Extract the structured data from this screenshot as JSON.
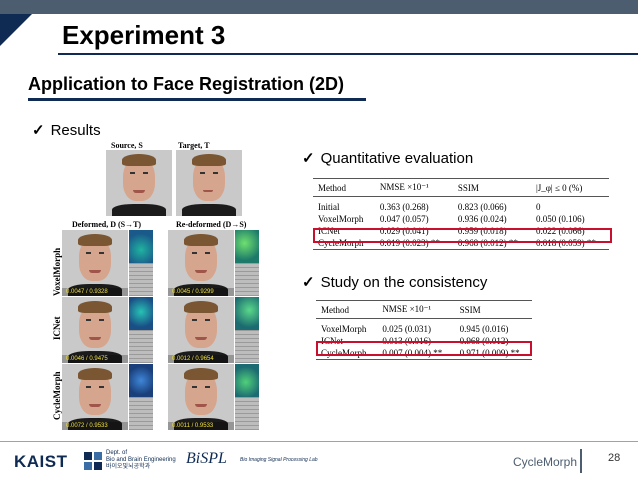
{
  "slide": {
    "title": "Experiment 3",
    "subtitle": "Application to Face Registration (2D)",
    "bullets": {
      "results": "Results",
      "quantitative": "Quantitative evaluation",
      "consistency": "Study on the consistency"
    },
    "check_glyph": "✓"
  },
  "figure": {
    "source_label": "Source, S",
    "target_label": "Target, T",
    "deformed_label": "Deformed, D (S→T)",
    "redeformed_label": "Re-deformed (D→S)",
    "rows": [
      {
        "label": "VoxelMorph",
        "left_score": "0.0047 / 0.9328",
        "right_score": "0.0045 / 0.9299"
      },
      {
        "label": "ICNet",
        "left_score": "0.0046 / 0.9475",
        "right_score": "0.0012 / 0.9654"
      },
      {
        "label": "CycleMorph",
        "left_score": "0.0072 / 0.9533",
        "right_score": "0.0011 / 0.9533"
      }
    ]
  },
  "table1": {
    "headers": [
      "Method",
      "NMSE ×10⁻¹",
      "SSIM",
      "|J_φ| ≤ 0 (%)"
    ],
    "rows": [
      [
        "Initial",
        "0.363 (0.268)",
        "0.823 (0.066)",
        "0"
      ],
      [
        "VoxelMorph",
        "0.047 (0.057)",
        "0.936 (0.024)",
        "0.050 (0.106)"
      ],
      [
        "ICNet",
        "0.029 (0.041)",
        "0.959 (0.018)",
        "0.022 (0.066)"
      ],
      [
        "CycleMorph",
        "0.019 (0.023) **",
        "0.968 (0.012) **",
        "0.018 (0.059) **"
      ]
    ]
  },
  "table2": {
    "headers": [
      "Method",
      "NMSE ×10⁻¹",
      "SSIM"
    ],
    "rows": [
      [
        "VoxelMorph",
        "0.025 (0.031)",
        "0.945 (0.016)"
      ],
      [
        "ICNet",
        "0.013 (0.016)",
        "0.968 (0.012)"
      ],
      [
        "CycleMorph",
        "0.007 (0.004) **",
        "0.971 (0.009) **"
      ]
    ]
  },
  "footer": {
    "kaist": "KAIST",
    "dept_line1": "Dept. of",
    "dept_line2": "Bio and Brain Engineering",
    "dept_line3": "바이오및뇌공학과",
    "bispl": "BiSPL",
    "bispl_sub": "Bio Imaging Signal Processing Lab",
    "name": "CycleMorph",
    "page": "28"
  },
  "colors": {
    "navy": "#0f2b53",
    "red_box": "#c8102e",
    "top_bar": "#4d5d70"
  }
}
